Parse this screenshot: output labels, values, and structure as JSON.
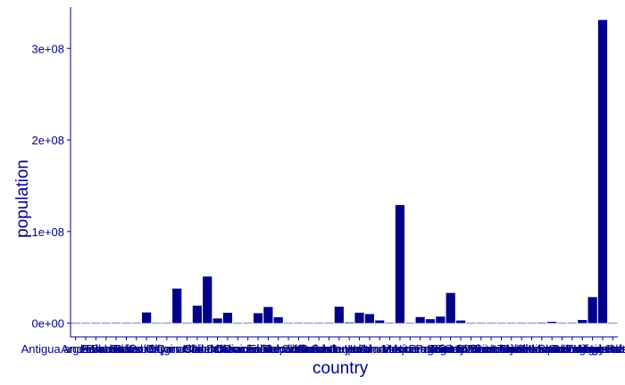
{
  "chart_data": {
    "type": "bar",
    "title": "",
    "xlabel": "country",
    "ylabel": "population",
    "ylim": [
      -15000000.0,
      345000000.0
    ],
    "yticks": [
      0,
      100000000,
      200000000,
      300000000
    ],
    "ytick_labels": [
      "0e+00",
      "1e+08",
      "2e+08",
      "3e+08"
    ],
    "categories": [
      "Antigua and Barbuda",
      "Argentina",
      "Aruba",
      "Bahamas",
      "Barbados",
      "Belize",
      "Bermuda",
      "Bolivia",
      "BQ",
      "British Virgin Islands",
      "Canada",
      "Cayman Islands",
      "Chile",
      "Colombia",
      "Costa Rica",
      "Cuba",
      "Curacao",
      "Dominica",
      "Dominican Republic",
      "Ecuador",
      "El Salvador",
      "Falkland Islands",
      "French Guiana",
      "Greenland",
      "Grenada",
      "Guadeloupe",
      "Guatemala",
      "Guyana",
      "Haiti",
      "Honduras",
      "Jamaica",
      "Martinique",
      "Mexico",
      "Montserrat",
      "Nicaragua",
      "Panama",
      "Paraguay",
      "Peru",
      "Puerto Rico",
      "Saint Barthelemy",
      "Saint Kitts and Nevis",
      "Saint Lucia",
      "Saint Martin",
      "Saint Pierre and Miquelon",
      "Saint Vincent and the Grenadines",
      "Sint Maarten",
      "Suriname",
      "Trinidad and Tobago",
      "Turks and Caicos Islands",
      "United States Virgin Islands",
      "Uruguay",
      "Venezuela",
      "United States",
      "Virgin Islands"
    ],
    "values": [
      97000,
      0,
      106000,
      393000,
      287000,
      397000,
      62000,
      11673000,
      26000,
      30000,
      37742000,
      65000,
      19116000,
      50882000,
      5094000,
      11326000,
      164000,
      72000,
      10847000,
      17643000,
      6486000,
      3500,
      298000,
      56000,
      112000,
      400000,
      17915000,
      786000,
      11402000,
      9904000,
      2961000,
      375000,
      128932000,
      5000,
      6624000,
      4314000,
      7132000,
      32971000,
      2860000,
      9900,
      53000,
      183000,
      38000,
      5800,
      111000,
      42000,
      586000,
      1399000,
      38000,
      104000,
      3473000,
      28435000,
      331002000,
      104000
    ],
    "bar_color": "#00008b",
    "text_color": "#00008b",
    "grid": false,
    "legend": "none"
  }
}
